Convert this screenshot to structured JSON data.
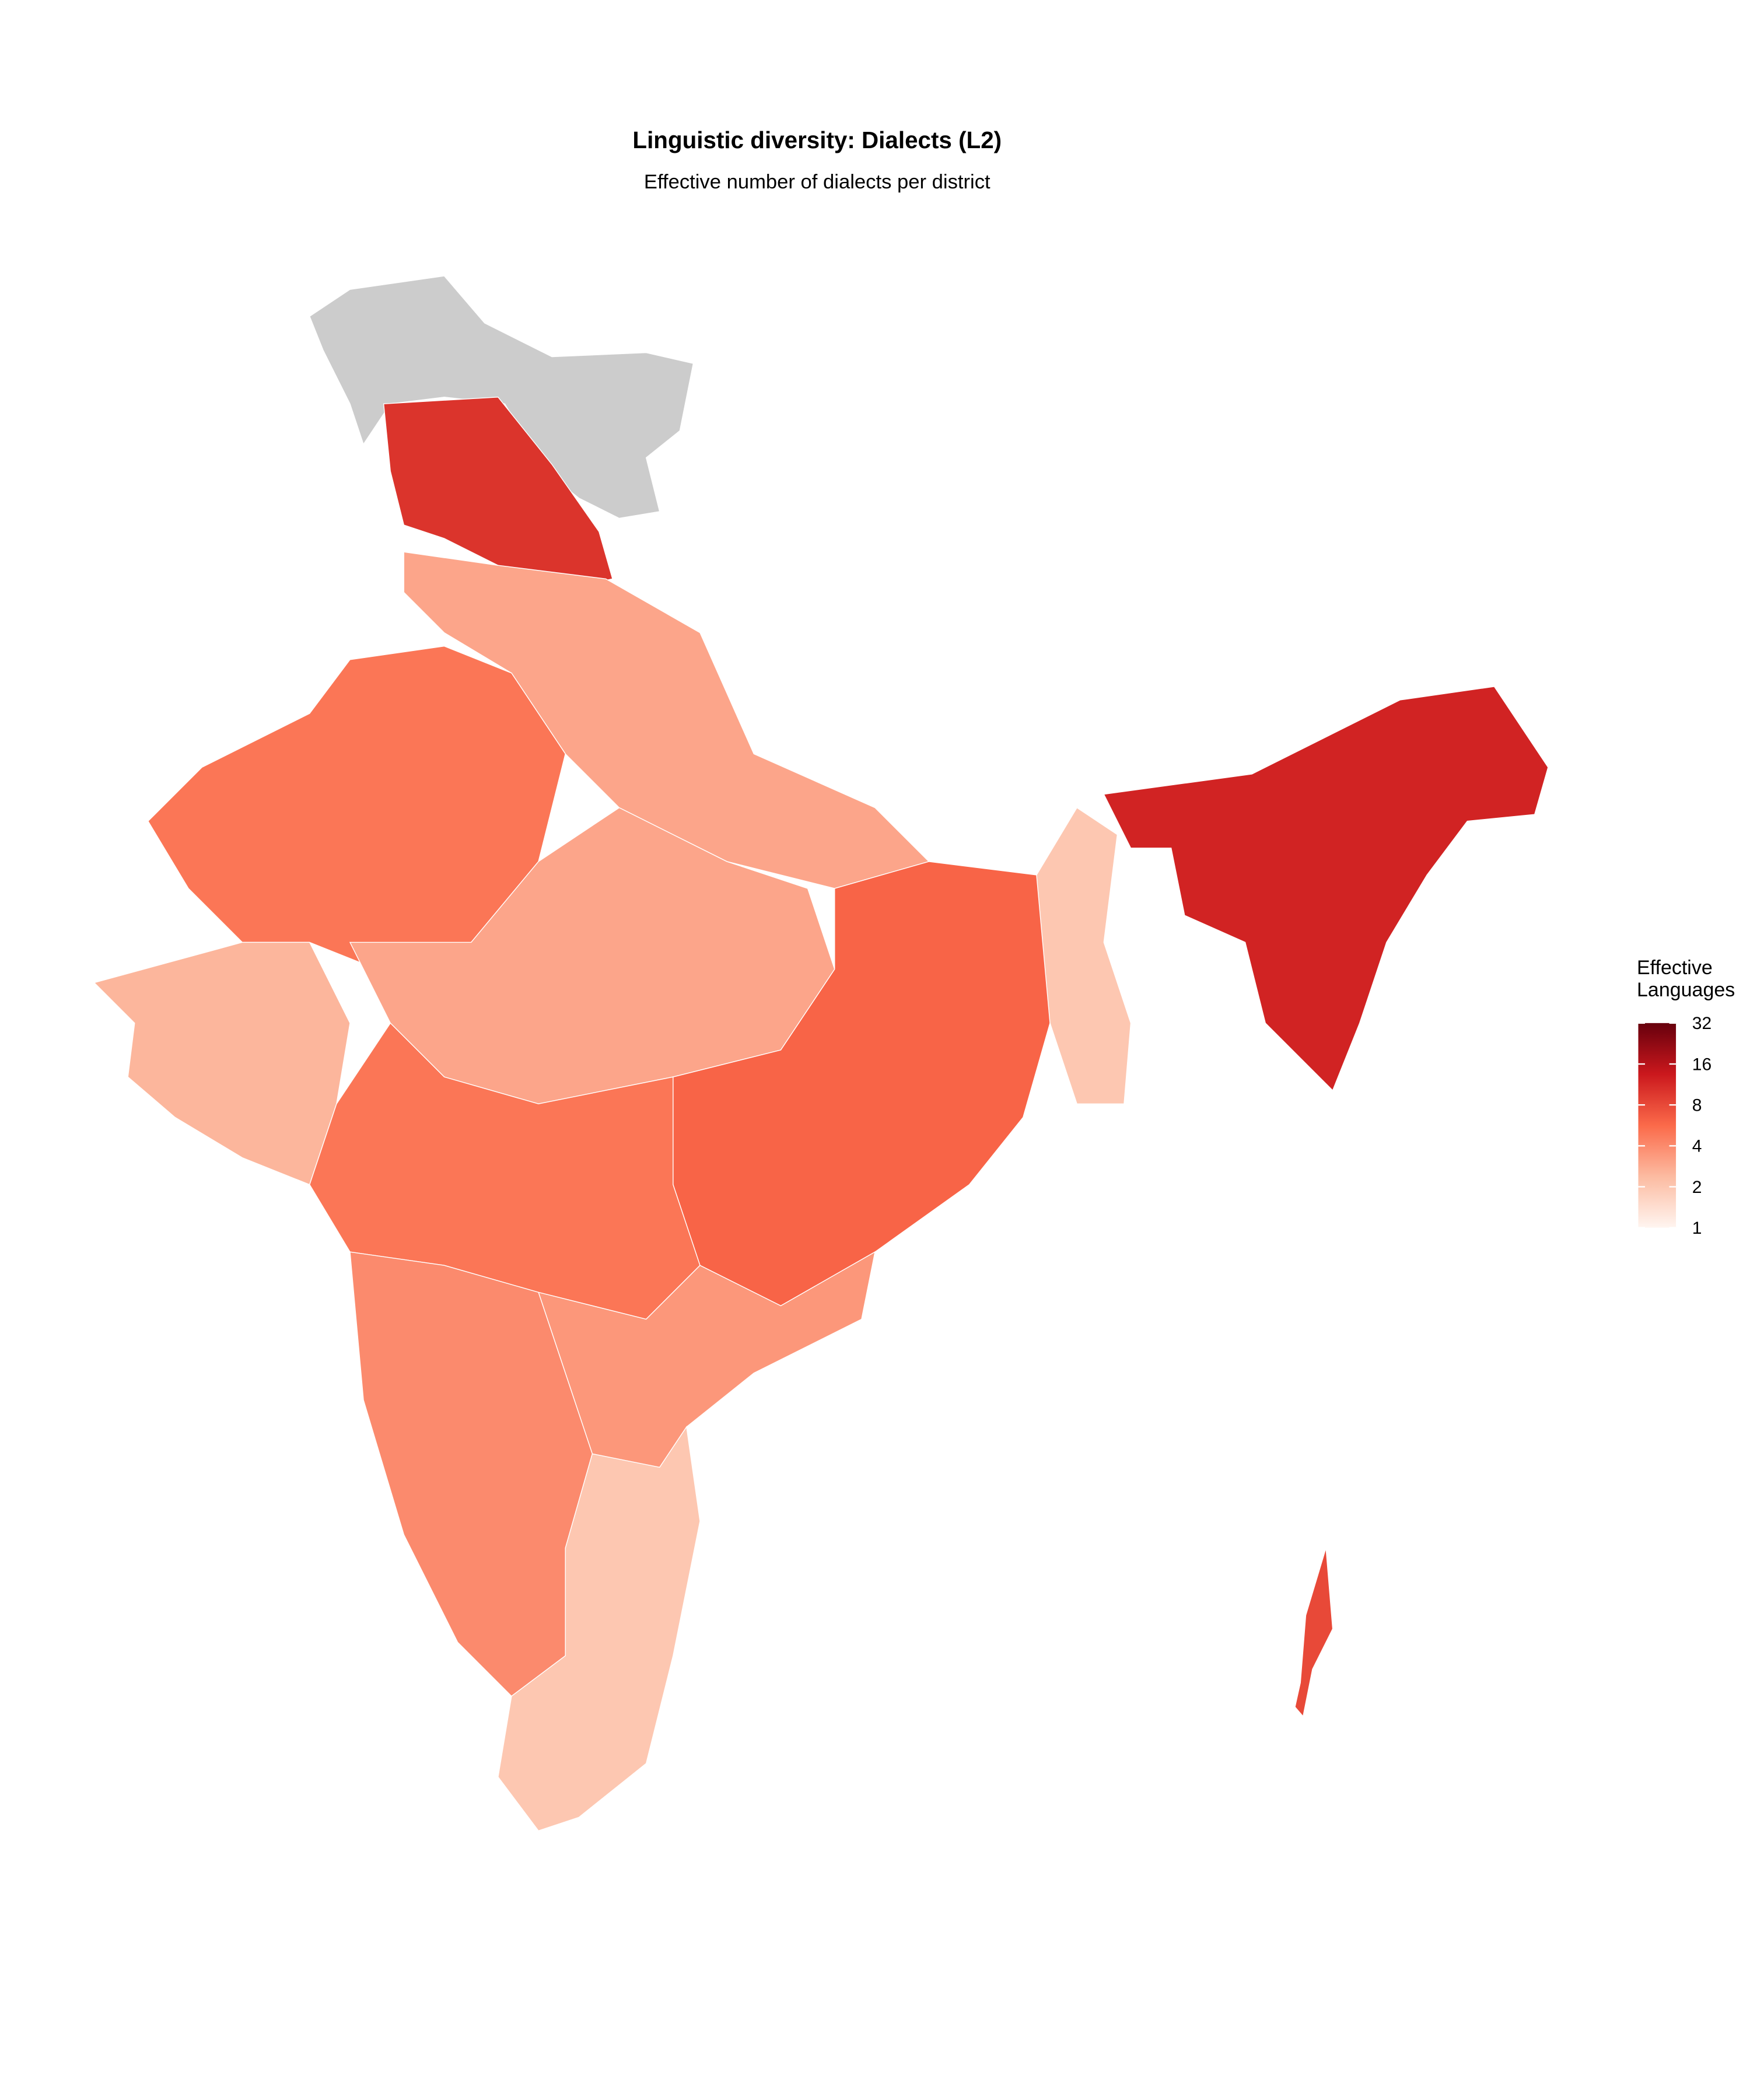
{
  "chart_data": {
    "type": "choropleth",
    "title": "Linguistic diversity: Dialects (L2)",
    "subtitle": "Effective number of dialects per district",
    "values": [
      null,
      10,
      3,
      5,
      2.5,
      3,
      6,
      2,
      5,
      3.5,
      4,
      2,
      12,
      8
    ],
    "na_color": "#cccccc",
    "palette": [
      "#fff5f0",
      "#fcbba1",
      "#fb6a4a",
      "#cb181d",
      "#67000d"
    ],
    "log_scale": true,
    "legend": {
      "title": "Effective\nLanguages",
      "lim": [
        1,
        32
      ],
      "ticks": [
        1,
        2,
        4,
        8,
        16,
        32
      ],
      "position": "right"
    }
  }
}
